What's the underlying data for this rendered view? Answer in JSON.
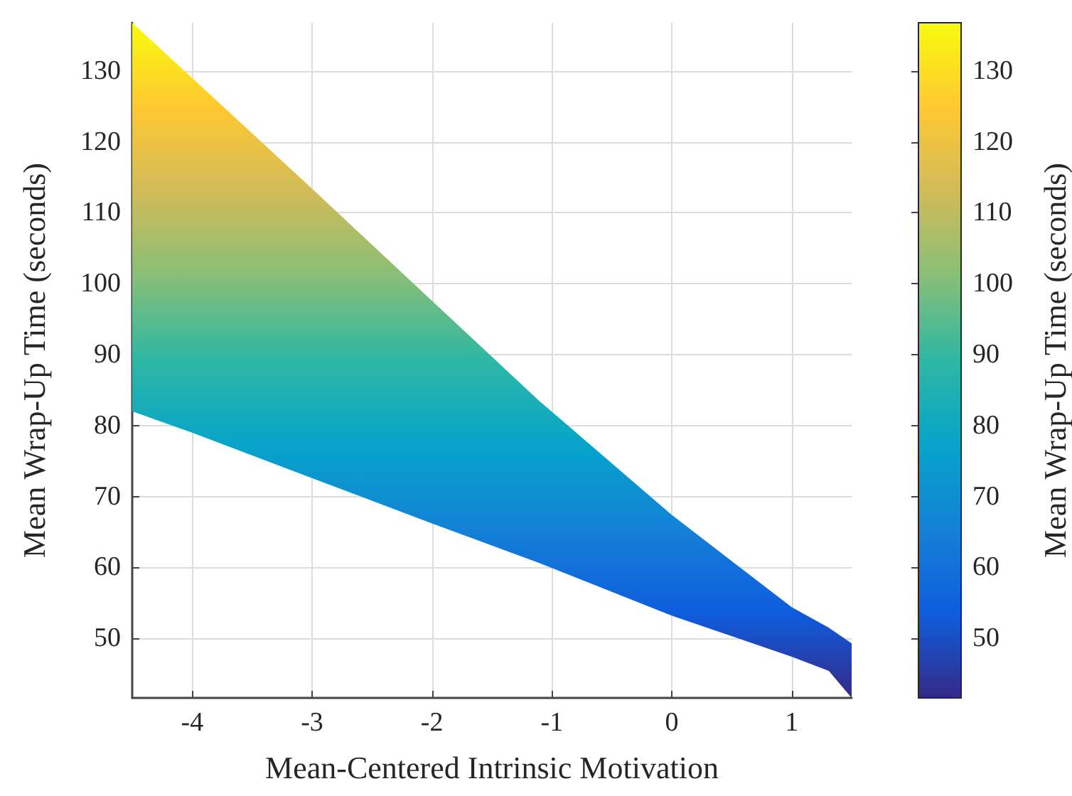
{
  "chart_data": {
    "type": "line",
    "xlabel": "Mean-Centered Intrinsic Motivation",
    "ylabel": "Mean Wrap-Up Time (seconds)",
    "clabel": "Mean Wrap-Up Time (seconds)",
    "xlim": [
      -4.5,
      1.5
    ],
    "xticks": [
      -4,
      -3,
      -2,
      -1,
      0,
      1
    ],
    "ylim": [
      41.6,
      136.8
    ],
    "yticks": [
      50,
      60,
      70,
      80,
      90,
      100,
      110,
      120,
      130
    ],
    "clim": [
      41.6,
      136.8
    ],
    "cticks": [
      50,
      60,
      70,
      80,
      90,
      100,
      110,
      120,
      130
    ],
    "grid": true,
    "series": [
      {
        "x": [
          -4.5,
          -4,
          -3,
          -2,
          -1.1,
          0,
          1,
          1.31,
          1.5
        ],
        "values": [
          null,
          null,
          null,
          null,
          null,
          null,
          null,
          null,
          null
        ],
        "upper": [
          136.8,
          129,
          113.4,
          97.6,
          83.4,
          67.4,
          54.4,
          51.5,
          49.3
        ],
        "lower": [
          82,
          79,
          72.6,
          66.2,
          60.6,
          53.2,
          47.4,
          45.4,
          41.6
        ],
        "colors": [
          "#352a87",
          "#0f5cdd",
          "#1481d6",
          "#06a4ca",
          "#2eb7a4",
          "#87bf77",
          "#d1bb59",
          "#fec832",
          "#f9fb0e"
        ]
      }
    ]
  }
}
